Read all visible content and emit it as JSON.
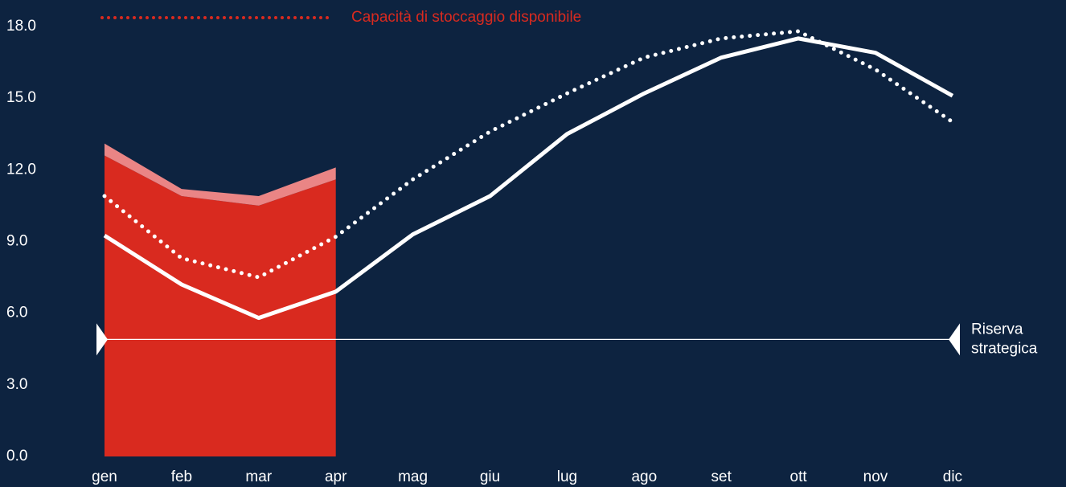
{
  "chart_data": {
    "type": "line",
    "categories": [
      "gen",
      "feb",
      "mar",
      "apr",
      "mag",
      "giu",
      "lug",
      "ago",
      "set",
      "ott",
      "nov",
      "dic"
    ],
    "ylim": [
      0,
      18
    ],
    "yticks": [
      {
        "value": 0,
        "label": "0.0"
      },
      {
        "value": 3,
        "label": "3.0"
      },
      {
        "value": 6,
        "label": "6.0"
      },
      {
        "value": 9,
        "label": "9.0"
      },
      {
        "value": 12,
        "label": "12.0"
      },
      {
        "value": 15,
        "label": "15.0"
      },
      {
        "value": 18,
        "label": "18.0"
      }
    ],
    "series": [
      {
        "kind": "area",
        "color": "#d92a1f",
        "values": [
          12.6,
          10.9,
          10.5,
          11.6,
          null,
          null,
          null,
          null,
          null,
          null,
          null,
          null
        ]
      },
      {
        "kind": "area",
        "stacked": true,
        "color": "#ea8585",
        "values": [
          0.5,
          0.3,
          0.4,
          0.5,
          null,
          null,
          null,
          null,
          null,
          null,
          null,
          null
        ]
      },
      {
        "kind": "line",
        "color": "#ffffff",
        "values": [
          9.25,
          7.2,
          5.8,
          6.9,
          9.3,
          10.9,
          13.5,
          15.2,
          16.7,
          17.5,
          16.9,
          15.1
        ]
      },
      {
        "kind": "line",
        "dotted": true,
        "name": "Capacità di stoccaggio disponibile",
        "color": "#ffffff",
        "legend_color": "#d92a1f",
        "values": [
          10.9,
          8.3,
          7.5,
          9.2,
          11.6,
          13.6,
          15.2,
          16.7,
          17.5,
          17.8,
          16.2,
          14.0
        ]
      }
    ],
    "reference_lines": [
      {
        "value": 4.9,
        "label_lines": [
          "Riserva",
          "strategica"
        ],
        "color": "#ffffff"
      }
    ],
    "background": "#0d2340"
  }
}
